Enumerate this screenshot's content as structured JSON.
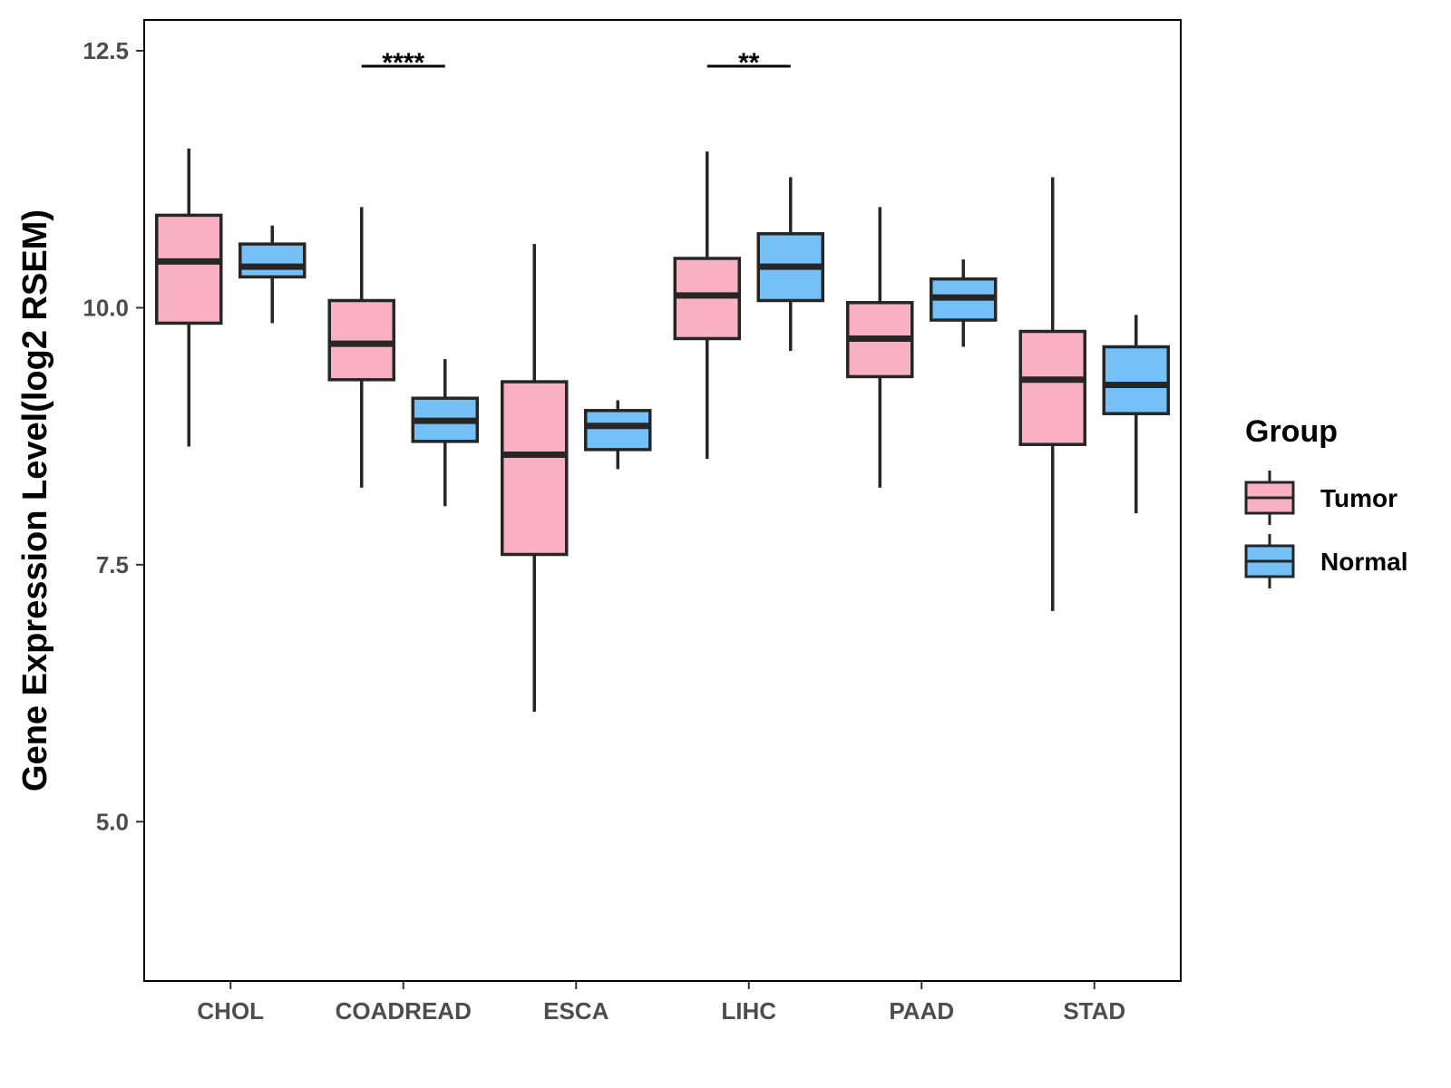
{
  "chart_data": {
    "type": "boxplot",
    "title": "",
    "xlabel": "",
    "ylabel": "Gene Expression Level(log2 RSEM)",
    "ylim": [
      3.45,
      12.8
    ],
    "yticks": [
      5.0,
      7.5,
      10.0,
      12.5
    ],
    "ytick_labels": [
      "5.0",
      "7.5",
      "10.0",
      "12.5"
    ],
    "categories": [
      "CHOL",
      "COADREAD",
      "ESCA",
      "LIHC",
      "PAAD",
      "STAD"
    ],
    "legend": {
      "title": "Group",
      "position": "right"
    },
    "series": [
      {
        "name": "Tumor",
        "color": "#F9B0C3",
        "boxes": [
          {
            "whisker_low": 8.65,
            "q1": 9.85,
            "median": 10.45,
            "q3": 10.9,
            "whisker_high": 11.55
          },
          {
            "whisker_low": 8.25,
            "q1": 9.3,
            "median": 9.65,
            "q3": 10.07,
            "whisker_high": 10.98
          },
          {
            "whisker_low": 6.07,
            "q1": 7.6,
            "median": 8.57,
            "q3": 9.28,
            "whisker_high": 10.62
          },
          {
            "whisker_low": 8.53,
            "q1": 9.7,
            "median": 10.12,
            "q3": 10.48,
            "whisker_high": 11.52
          },
          {
            "whisker_low": 8.25,
            "q1": 9.33,
            "median": 9.7,
            "q3": 10.05,
            "whisker_high": 10.98
          },
          {
            "whisker_low": 7.05,
            "q1": 8.67,
            "median": 9.3,
            "q3": 9.77,
            "whisker_high": 11.27
          }
        ]
      },
      {
        "name": "Normal",
        "color": "#74C0F7",
        "boxes": [
          {
            "whisker_low": 9.85,
            "q1": 10.3,
            "median": 10.4,
            "q3": 10.62,
            "whisker_high": 10.8
          },
          {
            "whisker_low": 8.07,
            "q1": 8.7,
            "median": 8.9,
            "q3": 9.12,
            "whisker_high": 9.5
          },
          {
            "whisker_low": 8.43,
            "q1": 8.62,
            "median": 8.85,
            "q3": 9.0,
            "whisker_high": 9.1
          },
          {
            "whisker_low": 9.58,
            "q1": 10.07,
            "median": 10.4,
            "q3": 10.72,
            "whisker_high": 11.27
          },
          {
            "whisker_low": 9.62,
            "q1": 9.88,
            "median": 10.1,
            "q3": 10.28,
            "whisker_high": 10.47
          },
          {
            "whisker_low": 8.0,
            "q1": 8.97,
            "median": 9.25,
            "q3": 9.62,
            "whisker_high": 9.93
          }
        ]
      }
    ],
    "annotations": [
      {
        "category": "COADREAD",
        "label": "****",
        "y": 12.35
      },
      {
        "category": "LIHC",
        "label": "**",
        "y": 12.35
      }
    ]
  }
}
